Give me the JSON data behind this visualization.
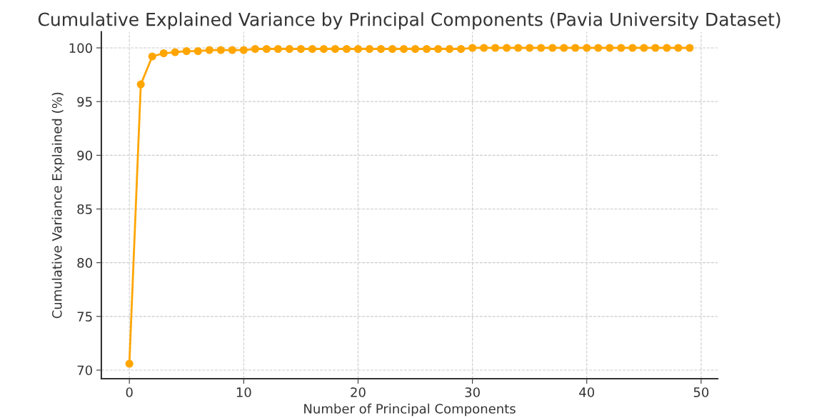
{
  "chart_data": {
    "type": "line",
    "title": "Cumulative Explained Variance by Principal Components (Pavia University Dataset)",
    "xlabel": "Number of Principal Components",
    "ylabel": "Cumulative Variance Explained (%)",
    "x": [
      0,
      1,
      2,
      3,
      4,
      5,
      6,
      7,
      8,
      9,
      10,
      11,
      12,
      13,
      14,
      15,
      16,
      17,
      18,
      19,
      20,
      21,
      22,
      23,
      24,
      25,
      26,
      27,
      28,
      29,
      30,
      31,
      32,
      33,
      34,
      35,
      36,
      37,
      38,
      39,
      40,
      41,
      42,
      43,
      44,
      45,
      46,
      47,
      48,
      49
    ],
    "series": [
      {
        "color": "#ffa500",
        "values": [
          70.6,
          96.6,
          99.2,
          99.5,
          99.6,
          99.7,
          99.7,
          99.8,
          99.8,
          99.8,
          99.8,
          99.9,
          99.9,
          99.9,
          99.9,
          99.9,
          99.9,
          99.9,
          99.9,
          99.9,
          99.9,
          99.9,
          99.9,
          99.9,
          99.9,
          99.9,
          99.9,
          99.9,
          99.9,
          99.9,
          100,
          100,
          100,
          100,
          100,
          100,
          100,
          100,
          100,
          100,
          100,
          100,
          100,
          100,
          100,
          100,
          100,
          100,
          100,
          100
        ]
      }
    ],
    "xlim": [
      -2.45,
      51.45
    ],
    "xticks": [
      0,
      10,
      20,
      30,
      40,
      50
    ],
    "ylim": [
      69.2,
      101.5
    ],
    "yticks": [
      70,
      75,
      80,
      85,
      90,
      95,
      100
    ],
    "grid": true,
    "marker": "circle",
    "line_style": "solid"
  }
}
